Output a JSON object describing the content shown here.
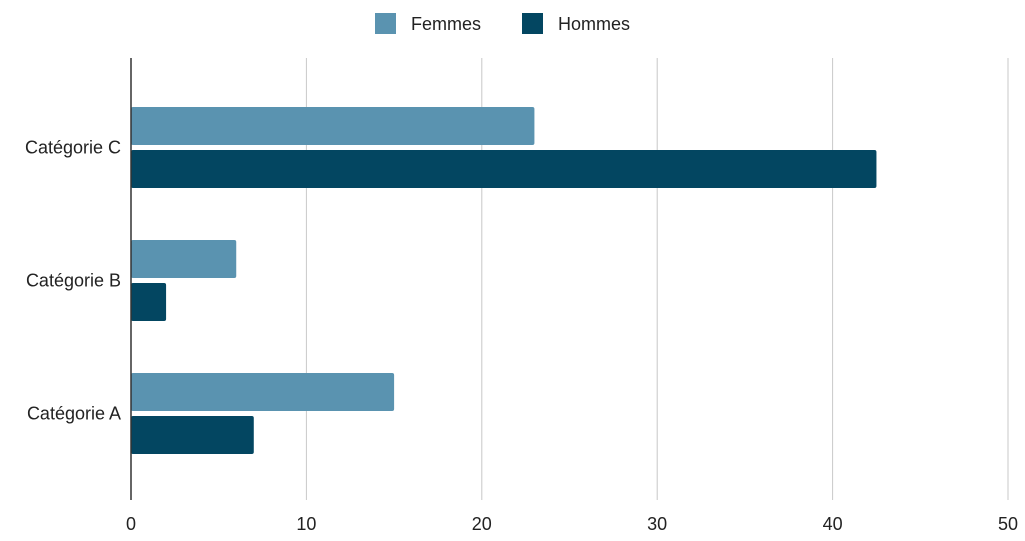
{
  "chart_data": {
    "type": "bar",
    "orientation": "horizontal",
    "title": "",
    "xlabel": "",
    "ylabel": "",
    "categories": [
      "Catégorie C",
      "Catégorie B",
      "Catégorie A"
    ],
    "series": [
      {
        "name": "Femmes",
        "color": "#5a93b0",
        "values": [
          23,
          6,
          15
        ]
      },
      {
        "name": "Hommes",
        "color": "#034661",
        "values": [
          42.5,
          2,
          7
        ]
      }
    ],
    "xlim": [
      0,
      50
    ],
    "xticks": [
      0,
      10,
      20,
      30,
      40,
      50
    ],
    "grid": "vertical",
    "legend_position": "top-center"
  }
}
